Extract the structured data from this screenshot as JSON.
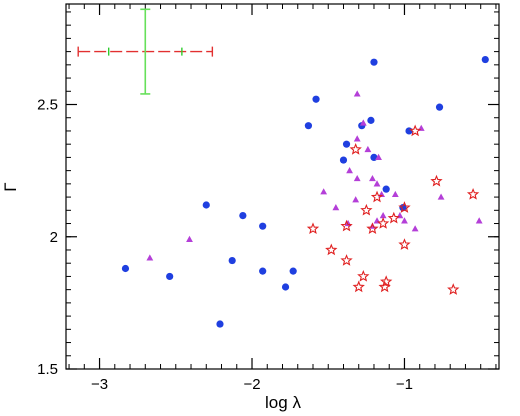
{
  "chart_data": {
    "type": "scatter",
    "xlabel": "log λ",
    "ylabel": "Γ",
    "xlim": [
      -3.22,
      -0.38
    ],
    "ylim": [
      1.5,
      2.88
    ],
    "xticks": [
      -3,
      -2,
      -1
    ],
    "xtick_labels": [
      "−3",
      "−2",
      "−1"
    ],
    "yticks": [
      1.5,
      2,
      2.5
    ],
    "ytick_labels": [
      "1.5",
      "2",
      "2.5"
    ],
    "xminor_step": 0.1,
    "yminor_step": 0.05,
    "grid": false,
    "series": [
      {
        "marker": "circle",
        "color": "#1f3fe0",
        "points": [
          [
            -2.83,
            1.88
          ],
          [
            -2.54,
            1.85
          ],
          [
            -2.3,
            2.12
          ],
          [
            -2.21,
            1.67
          ],
          [
            -2.06,
            2.08
          ],
          [
            -2.13,
            1.91
          ],
          [
            -1.93,
            2.04
          ],
          [
            -1.93,
            1.87
          ],
          [
            -1.78,
            1.81
          ],
          [
            -1.73,
            1.87
          ],
          [
            -1.58,
            2.52
          ],
          [
            -1.63,
            2.42
          ],
          [
            -1.4,
            2.29
          ],
          [
            -1.38,
            2.35
          ],
          [
            -1.28,
            2.42
          ],
          [
            -1.22,
            2.44
          ],
          [
            -1.2,
            2.66
          ],
          [
            -1.2,
            2.3
          ],
          [
            -1.12,
            2.18
          ],
          [
            -1.01,
            2.11
          ],
          [
            -0.97,
            2.4
          ],
          [
            -0.77,
            2.49
          ],
          [
            -0.47,
            2.67
          ]
        ]
      },
      {
        "marker": "triangle",
        "color": "#b43fd8",
        "points": [
          [
            -2.67,
            1.92
          ],
          [
            -2.41,
            1.99
          ],
          [
            -1.31,
            2.54
          ],
          [
            -1.27,
            2.43
          ],
          [
            -1.31,
            2.37
          ],
          [
            -1.24,
            2.33
          ],
          [
            -1.17,
            2.3
          ],
          [
            -1.53,
            2.17
          ],
          [
            -1.45,
            2.11
          ],
          [
            -1.36,
            2.25
          ],
          [
            -1.31,
            2.22
          ],
          [
            -1.21,
            2.22
          ],
          [
            -1.18,
            2.2
          ],
          [
            -1.15,
            2.16
          ],
          [
            -1.32,
            2.14
          ],
          [
            -1.14,
            2.08
          ],
          [
            -1.18,
            2.06
          ],
          [
            -1.21,
            2.04
          ],
          [
            -1.37,
            2.05
          ],
          [
            -1.06,
            2.16
          ],
          [
            -1.03,
            2.08
          ],
          [
            -1.0,
            2.06
          ],
          [
            -0.93,
            2.03
          ],
          [
            -0.76,
            2.15
          ],
          [
            -0.89,
            2.41
          ],
          [
            -0.51,
            2.06
          ]
        ]
      },
      {
        "marker": "star",
        "color": "#e02020",
        "points": [
          [
            -1.6,
            2.03
          ],
          [
            -1.48,
            1.95
          ],
          [
            -1.38,
            1.91
          ],
          [
            -1.38,
            2.04
          ],
          [
            -1.32,
            2.33
          ],
          [
            -1.3,
            1.81
          ],
          [
            -1.27,
            1.85
          ],
          [
            -1.25,
            2.1
          ],
          [
            -1.21,
            2.03
          ],
          [
            -1.18,
            2.15
          ],
          [
            -1.14,
            2.05
          ],
          [
            -1.13,
            1.81
          ],
          [
            -1.12,
            1.83
          ],
          [
            -1.07,
            2.07
          ],
          [
            -1.0,
            1.97
          ],
          [
            -1.0,
            2.11
          ],
          [
            -0.93,
            2.4
          ],
          [
            -0.79,
            2.21
          ],
          [
            -0.68,
            1.8
          ],
          [
            -0.55,
            2.16
          ]
        ]
      }
    ],
    "error_bar": {
      "x": -2.7,
      "y": 2.7,
      "x_outer": 0.44,
      "x_inner": 0.24,
      "y_err": 0.16,
      "h_color": "#e23030",
      "h_inner_color": "#2ecc2e",
      "v_color": "#66e05a"
    }
  }
}
